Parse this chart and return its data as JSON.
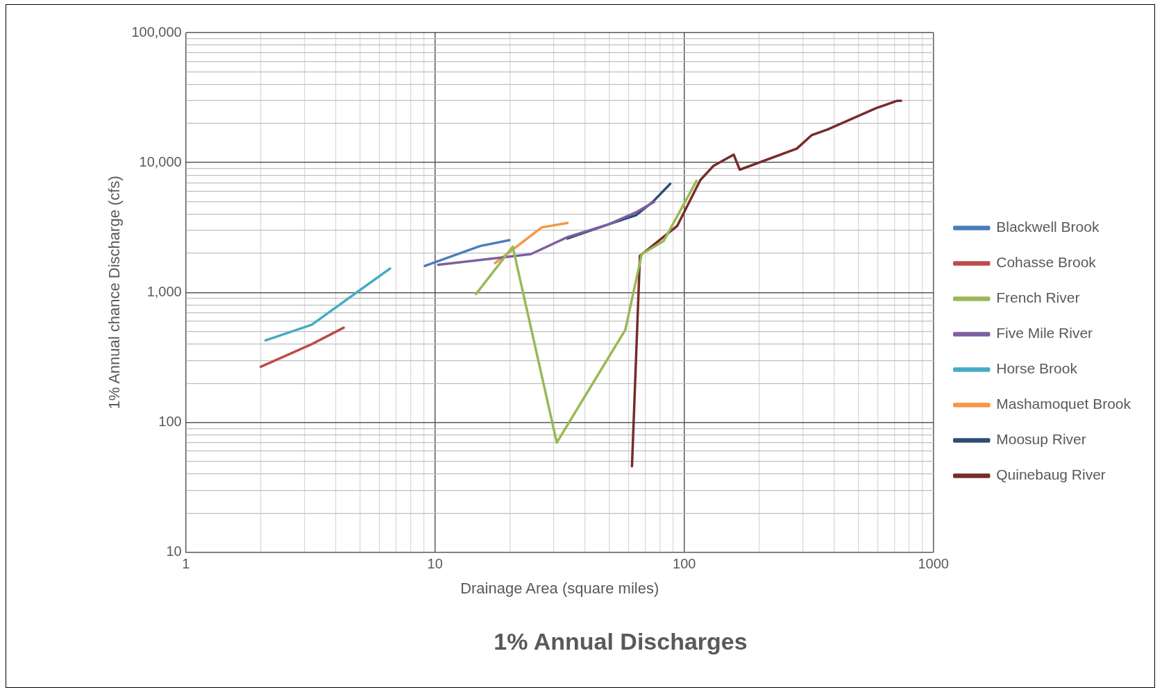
{
  "chart_data": {
    "type": "line",
    "title": "1% Annual Discharges",
    "xlabel": "Drainage Area (square miles)",
    "ylabel": "1% Annual chance Discharge (cfs)",
    "log": "xy",
    "grid": true,
    "legend": "right",
    "marker": "none",
    "line_style": "solid",
    "xlim": [
      1,
      1000
    ],
    "ylim": [
      10,
      100000
    ],
    "xticks": [
      1,
      {
        "value": 2,
        "label": null
      },
      {
        "value": 3,
        "label": null
      },
      {
        "value": 4,
        "label": null
      },
      {
        "value": 5,
        "label": null
      },
      {
        "value": 6,
        "label": null
      },
      {
        "value": 7,
        "label": null
      },
      {
        "value": 8,
        "label": null
      },
      {
        "value": 9,
        "label": null
      },
      10,
      {
        "value": 20,
        "label": null
      },
      {
        "value": 30,
        "label": null
      },
      {
        "value": 40,
        "label": null
      },
      {
        "value": 50,
        "label": null
      },
      {
        "value": 60,
        "label": null
      },
      {
        "value": 70,
        "label": null
      },
      {
        "value": 80,
        "label": null
      },
      {
        "value": 90,
        "label": null
      },
      100,
      {
        "value": 200,
        "label": null
      },
      {
        "value": 300,
        "label": null
      },
      {
        "value": 400,
        "label": null
      },
      {
        "value": 500,
        "label": null
      },
      {
        "value": 600,
        "label": null
      },
      {
        "value": 700,
        "label": null
      },
      {
        "value": 800,
        "label": null
      },
      {
        "value": 900,
        "label": null
      },
      1000
    ],
    "yticks": [
      10,
      {
        "value": 20,
        "label": null
      },
      {
        "value": 30,
        "label": null
      },
      {
        "value": 40,
        "label": null
      },
      {
        "value": 50,
        "label": null
      },
      {
        "value": 60,
        "label": null
      },
      {
        "value": 70,
        "label": null
      },
      {
        "value": 80,
        "label": null
      },
      {
        "value": 90,
        "label": null
      },
      100,
      {
        "value": 200,
        "label": null
      },
      {
        "value": 300,
        "label": null
      },
      {
        "value": 400,
        "label": null
      },
      {
        "value": 500,
        "label": null
      },
      {
        "value": 600,
        "label": null
      },
      {
        "value": 700,
        "label": null
      },
      {
        "value": 800,
        "label": null
      },
      {
        "value": 900,
        "label": null
      },
      {
        "value": 1000,
        "label": "1,000"
      },
      {
        "value": 2000,
        "label": null
      },
      {
        "value": 3000,
        "label": null
      },
      {
        "value": 4000,
        "label": null
      },
      {
        "value": 5000,
        "label": null
      },
      {
        "value": 6000,
        "label": null
      },
      {
        "value": 7000,
        "label": null
      },
      {
        "value": 8000,
        "label": null
      },
      {
        "value": 9000,
        "label": null
      },
      {
        "value": 10000,
        "label": "10,000"
      },
      {
        "value": 20000,
        "label": null
      },
      {
        "value": 30000,
        "label": null
      },
      {
        "value": 40000,
        "label": null
      },
      {
        "value": 50000,
        "label": null
      },
      {
        "value": 60000,
        "label": null
      },
      {
        "value": 70000,
        "label": null
      },
      {
        "value": 80000,
        "label": null
      },
      {
        "value": 90000,
        "label": null
      },
      {
        "value": 100000,
        "label": "100,000"
      }
    ],
    "series": [
      {
        "name": "Blackwell Brook",
        "color": "#4a7ebb",
        "x": [
          9.1,
          15.2,
          19.9
        ],
        "values": [
          1600,
          2280,
          2530
        ]
      },
      {
        "name": "Cohasse Brook",
        "color": "#be4b48",
        "x": [
          2.0,
          3.2,
          4.3
        ],
        "values": [
          268,
          400,
          536
        ]
      },
      {
        "name": "French River",
        "color": "#98b954",
        "x": [
          14.6,
          20.5,
          30.8,
          58,
          67.5,
          82.8,
          112
        ],
        "values": [
          973,
          2250,
          70,
          515,
          1970,
          2500,
          7230
        ]
      },
      {
        "name": "Five Mile River",
        "color": "#7d60a0",
        "x": [
          10.3,
          24.2,
          34,
          50,
          64,
          75.7
        ],
        "values": [
          1633,
          1970,
          2670,
          3360,
          4140,
          4980
        ]
      },
      {
        "name": "Horse Brook",
        "color": "#46aac5",
        "x": [
          2.09,
          3.2,
          6.6
        ],
        "values": [
          428,
          565,
          1530
        ]
      },
      {
        "name": "Mashamoquet Brook",
        "color": "#f79646",
        "x": [
          17.4,
          26.8,
          34
        ],
        "values": [
          1680,
          3170,
          3430
        ]
      },
      {
        "name": "Moosup River",
        "color": "#2c4d75",
        "x": [
          34,
          50,
          64,
          75,
          87.9
        ],
        "values": [
          2600,
          3360,
          3930,
          5010,
          6860
        ]
      },
      {
        "name": "Quinebaug River",
        "color": "#772c2a",
        "x": [
          61.7,
          66.4,
          93.8,
          116,
          131,
          158,
          167,
          283,
          324,
          377,
          588,
          716,
          741
        ],
        "values": [
          46,
          1915,
          3260,
          7330,
          9420,
          11500,
          8810,
          12800,
          16200,
          18000,
          26200,
          29900,
          29900
        ]
      }
    ]
  }
}
